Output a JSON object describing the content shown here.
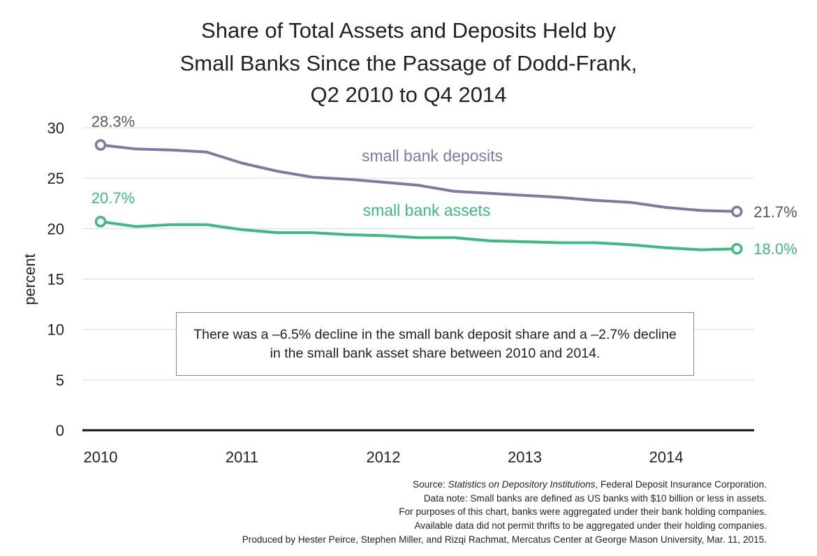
{
  "title_lines": [
    "Share of Total Assets and Deposits Held by",
    "Small Banks Since the Passage of Dodd-Frank,",
    "Q2 2010 to Q4 2014"
  ],
  "annotation": "There was a –6.5% decline in the small bank deposit share and a –2.7% decline in the small bank asset share between 2010 and 2014.",
  "footer": {
    "source_prefix": "Source: ",
    "source_title": "Statistics on Depository Institutions",
    "source_suffix": ", Federal Deposit Insurance Corporation.",
    "notes": [
      "Data note: Small banks are defined as US banks with $10 billion or less in assets.",
      "For purposes of this chart, banks were aggregated under their bank holding companies.",
      "Available data did not permit thrifts to be aggregated under their holding companies.",
      "Produced by Hester Peirce, Stephen Miller, and Rizqi Rachmat, Mercatus Center at George Mason University, Mar. 11, 2015."
    ]
  },
  "chart_data": {
    "type": "line",
    "ylabel": "percent",
    "xlabel": "",
    "ylim": [
      0,
      30
    ],
    "yticks": [
      0,
      5,
      10,
      15,
      20,
      25,
      30
    ],
    "xticks": [
      "2010",
      "2011",
      "2012",
      "2013",
      "2014"
    ],
    "grid": true,
    "x": [
      "Q2 2010",
      "Q3 2010",
      "Q4 2010",
      "Q1 2011",
      "Q2 2011",
      "Q3 2011",
      "Q4 2011",
      "Q1 2012",
      "Q2 2012",
      "Q3 2012",
      "Q4 2012",
      "Q1 2013",
      "Q2 2013",
      "Q3 2013",
      "Q4 2013",
      "Q1 2014",
      "Q2 2014",
      "Q3 2014",
      "Q4 2014"
    ],
    "series": [
      {
        "name": "small bank deposits",
        "color": "#7b7aa1",
        "values": [
          28.3,
          27.9,
          27.8,
          27.6,
          26.5,
          25.7,
          25.1,
          24.9,
          24.6,
          24.3,
          23.7,
          23.5,
          23.3,
          23.1,
          22.8,
          22.6,
          22.1,
          21.8,
          21.7
        ],
        "start_label": "28.3%",
        "end_label": "21.7%"
      },
      {
        "name": "small bank assets",
        "color": "#3dbb7e",
        "values": [
          20.7,
          20.2,
          20.4,
          20.4,
          19.9,
          19.6,
          19.6,
          19.4,
          19.3,
          19.1,
          19.1,
          18.8,
          18.7,
          18.6,
          18.6,
          18.4,
          18.1,
          17.9,
          18.0
        ],
        "start_label": "20.7%",
        "end_label": "18.0%"
      }
    ],
    "label_color": "#58585a"
  }
}
